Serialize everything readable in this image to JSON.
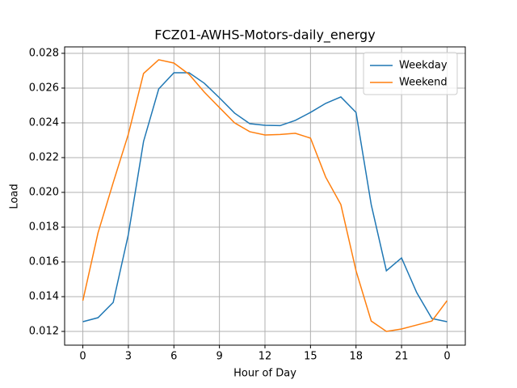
{
  "chart_data": {
    "type": "line",
    "title": "FCZ01-AWHS-Motors-daily_energy",
    "x_label": "Hour of Day",
    "y_label": "Load",
    "x": [
      0,
      1,
      2,
      3,
      4,
      5,
      6,
      7,
      8,
      9,
      10,
      11,
      12,
      13,
      14,
      15,
      16,
      17,
      18,
      19,
      20,
      21,
      22,
      23,
      24
    ],
    "series": [
      {
        "name": "Weekday",
        "color": "#1f77b4",
        "values": [
          0.01256,
          0.01279,
          0.01367,
          0.01758,
          0.02293,
          0.02595,
          0.02688,
          0.02688,
          0.02628,
          0.02544,
          0.02456,
          0.02395,
          0.02386,
          0.02384,
          0.02414,
          0.0246,
          0.02512,
          0.02549,
          0.0246,
          0.0193,
          0.01549,
          0.01623,
          0.01423,
          0.01274,
          0.01256
        ]
      },
      {
        "name": "Weekend",
        "color": "#ff7f0e",
        "values": [
          0.01377,
          0.01767,
          0.02056,
          0.02335,
          0.02684,
          0.02763,
          0.02744,
          0.02679,
          0.02577,
          0.02488,
          0.024,
          0.02349,
          0.0233,
          0.02333,
          0.0234,
          0.02312,
          0.02088,
          0.0193,
          0.01549,
          0.0126,
          0.012,
          0.01214,
          0.01237,
          0.0126,
          0.01377
        ]
      }
    ],
    "xlim": [
      -1.2,
      25.2
    ],
    "xticks": [
      0,
      3,
      6,
      9,
      12,
      15,
      18,
      21,
      {
        "value": 24,
        "label": "0"
      }
    ],
    "ylim": [
      0.01121,
      0.02837
    ],
    "yticks": [
      0.012,
      0.014,
      0.016,
      0.018,
      {
        "value": 0.02,
        "label": "0.020"
      },
      0.022,
      0.024,
      0.026,
      0.028
    ],
    "grid": true,
    "legend": "upper right"
  }
}
